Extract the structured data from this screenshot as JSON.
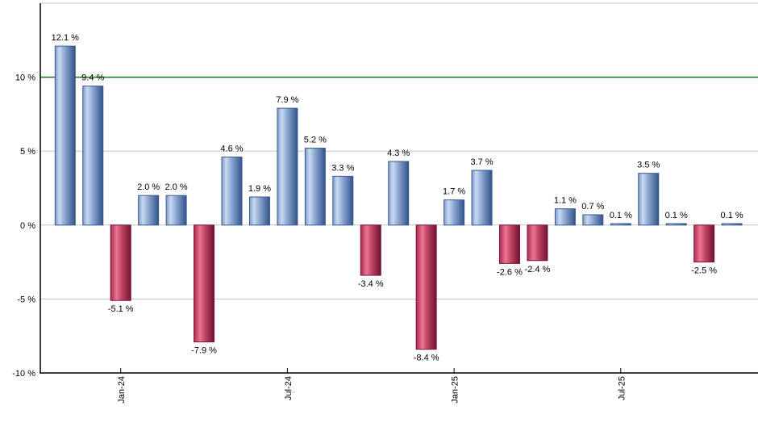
{
  "chart_data": {
    "type": "bar",
    "title": "",
    "xlabel": "",
    "ylabel": "",
    "ylim": [
      -10,
      15
    ],
    "grid": true,
    "y_ticks": [
      {
        "value": 10,
        "label": "10 %"
      },
      {
        "value": 5,
        "label": "5 %"
      },
      {
        "value": 0,
        "label": "0 %"
      },
      {
        "value": -5,
        "label": "-5 %"
      },
      {
        "value": -10,
        "label": "-10 %"
      }
    ],
    "x_ticks": [
      {
        "bar_index": 2,
        "label": "Jan-24"
      },
      {
        "bar_index": 8,
        "label": "Jul-24"
      },
      {
        "bar_index": 14,
        "label": "Jan-25"
      },
      {
        "bar_index": 20,
        "label": "Jul-25"
      }
    ],
    "bars": [
      {
        "value": 12.1,
        "label": "12.1 %"
      },
      {
        "value": 9.4,
        "label": "9.4 %"
      },
      {
        "value": -5.1,
        "label": "-5.1 %"
      },
      {
        "value": 2.0,
        "label": "2.0 %"
      },
      {
        "value": 2.0,
        "label": "2.0 %"
      },
      {
        "value": -7.9,
        "label": "-7.9 %"
      },
      {
        "value": 4.6,
        "label": "4.6 %"
      },
      {
        "value": 1.9,
        "label": "1.9 %"
      },
      {
        "value": 7.9,
        "label": "7.9 %"
      },
      {
        "value": 5.2,
        "label": "5.2 %"
      },
      {
        "value": 3.3,
        "label": "3.3 %"
      },
      {
        "value": -3.4,
        "label": "-3.4 %"
      },
      {
        "value": 4.3,
        "label": "4.3 %"
      },
      {
        "value": -8.4,
        "label": "-8.4 %"
      },
      {
        "value": 1.7,
        "label": "1.7 %"
      },
      {
        "value": 3.7,
        "label": "3.7 %"
      },
      {
        "value": -2.6,
        "label": "-2.6 %"
      },
      {
        "value": -2.4,
        "label": "-2.4 %"
      },
      {
        "value": 1.1,
        "label": "1.1 %"
      },
      {
        "value": 0.7,
        "label": "0.7 %"
      },
      {
        "value": 0.1,
        "label": "0.1 %"
      },
      {
        "value": 3.5,
        "label": "3.5 %"
      },
      {
        "value": 0.1,
        "label": "0.1 %"
      },
      {
        "value": -2.5,
        "label": "-2.5 %"
      },
      {
        "value": 0.1,
        "label": "0.1 %"
      }
    ],
    "reference_line": {
      "value": 10,
      "color": "#0a7d0a"
    },
    "colors": {
      "positive_gradient": [
        "#7d9bca",
        "#c9d9f2",
        "#8aa5d0",
        "#31538a"
      ],
      "positive_stops": [
        0,
        0.22,
        0.5,
        1
      ],
      "negative_gradient": [
        "#a82a4e",
        "#ea7693",
        "#c04564",
        "#6e1330"
      ],
      "negative_stops": [
        0,
        0.3,
        0.55,
        1
      ],
      "positive_edge": "#3a5a90",
      "negative_edge": "#7c1836",
      "grid": "#c6c6c6",
      "axis": "#000000",
      "label": "#000000",
      "background": "#ffffff"
    }
  }
}
